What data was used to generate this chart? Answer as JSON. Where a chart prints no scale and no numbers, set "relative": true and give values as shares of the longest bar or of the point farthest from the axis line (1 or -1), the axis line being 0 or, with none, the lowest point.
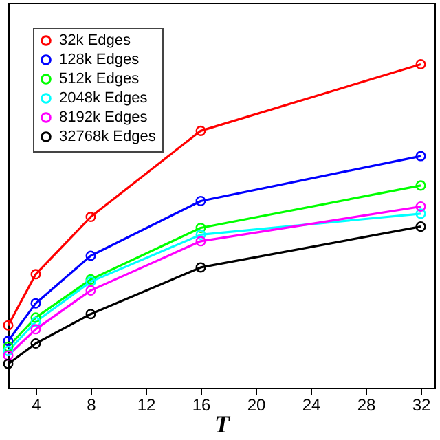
{
  "chart_data": {
    "type": "line",
    "xlabel": "T",
    "x": [
      2,
      4,
      8,
      16,
      32
    ],
    "xlim": [
      2,
      33
    ],
    "xticks": [
      4,
      8,
      12,
      16,
      20,
      24,
      28,
      32
    ],
    "relative": true,
    "marker": "circle",
    "line_style": "solid",
    "legend": "top left",
    "grid": false,
    "tick_labels": "x",
    "series": [
      {
        "name": "32k Edges",
        "color": "#ff0000",
        "values": [
          0.193,
          0.351,
          0.528,
          0.794,
          1.0
        ]
      },
      {
        "name": "128k Edges",
        "color": "#0000ff",
        "values": [
          0.145,
          0.261,
          0.408,
          0.577,
          0.716
        ]
      },
      {
        "name": "512k Edges",
        "color": "#00ff00",
        "values": [
          0.127,
          0.217,
          0.335,
          0.494,
          0.625
        ]
      },
      {
        "name": "2048k Edges",
        "color": "#00ffff",
        "values": [
          0.114,
          0.204,
          0.328,
          0.473,
          0.538
        ]
      },
      {
        "name": "8192k Edges",
        "color": "#ff00ff",
        "values": [
          0.1,
          0.181,
          0.301,
          0.453,
          0.56
        ]
      },
      {
        "name": "32768k Edges",
        "color": "#000000",
        "values": [
          0.074,
          0.137,
          0.228,
          0.372,
          0.498
        ]
      }
    ]
  }
}
